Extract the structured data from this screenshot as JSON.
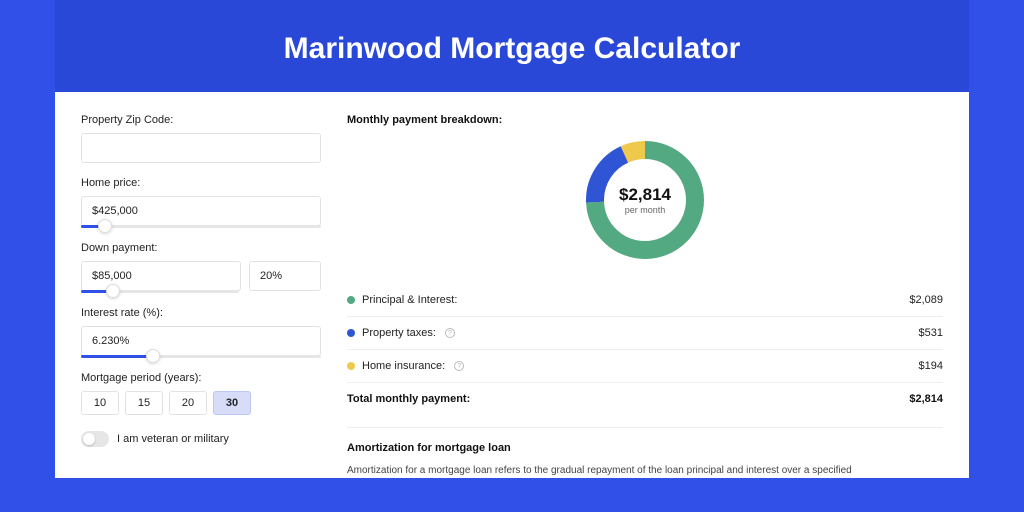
{
  "page": {
    "title": "Marinwood Mortgage Calculator",
    "background_color": "#3050e8",
    "inner_band_color": "#2a48d8"
  },
  "form": {
    "zip_label": "Property Zip Code:",
    "zip_value": "",
    "home_price_label": "Home price:",
    "home_price_value": "$425,000",
    "home_price_slider_pct": 10,
    "down_payment_label": "Down payment:",
    "down_payment_amount": "$85,000",
    "down_payment_pct": "20%",
    "down_payment_slider_pct": 20,
    "interest_label": "Interest rate (%):",
    "interest_value": "6.230%",
    "interest_slider_pct": 30,
    "period_label": "Mortgage period (years):",
    "periods": [
      "10",
      "15",
      "20",
      "30"
    ],
    "period_active_index": 3,
    "veteran_label": "I am veteran or military",
    "veteran_on": false
  },
  "breakdown": {
    "header": "Monthly payment breakdown:",
    "donut": {
      "amount": "$2,814",
      "sub": "per month",
      "segments": [
        {
          "label": "Principal & Interest",
          "value": 2089,
          "color": "#53a981",
          "pct": 74.2
        },
        {
          "label": "Property taxes",
          "value": 531,
          "color": "#2f55d4",
          "pct": 18.9
        },
        {
          "label": "Home insurance",
          "value": 194,
          "color": "#efc94c",
          "pct": 6.9
        }
      ],
      "stroke_width": 18
    },
    "rows": [
      {
        "label": "Principal & Interest:",
        "value": "$2,089",
        "color": "#53a981",
        "has_info": false
      },
      {
        "label": "Property taxes:",
        "value": "$531",
        "color": "#2f55d4",
        "has_info": true
      },
      {
        "label": "Home insurance:",
        "value": "$194",
        "color": "#efc94c",
        "has_info": true
      }
    ],
    "total_label": "Total monthly payment:",
    "total_value": "$2,814"
  },
  "amortization": {
    "header": "Amortization for mortgage loan",
    "body": "Amortization for a mortgage loan refers to the gradual repayment of the loan principal and interest over a specified"
  }
}
